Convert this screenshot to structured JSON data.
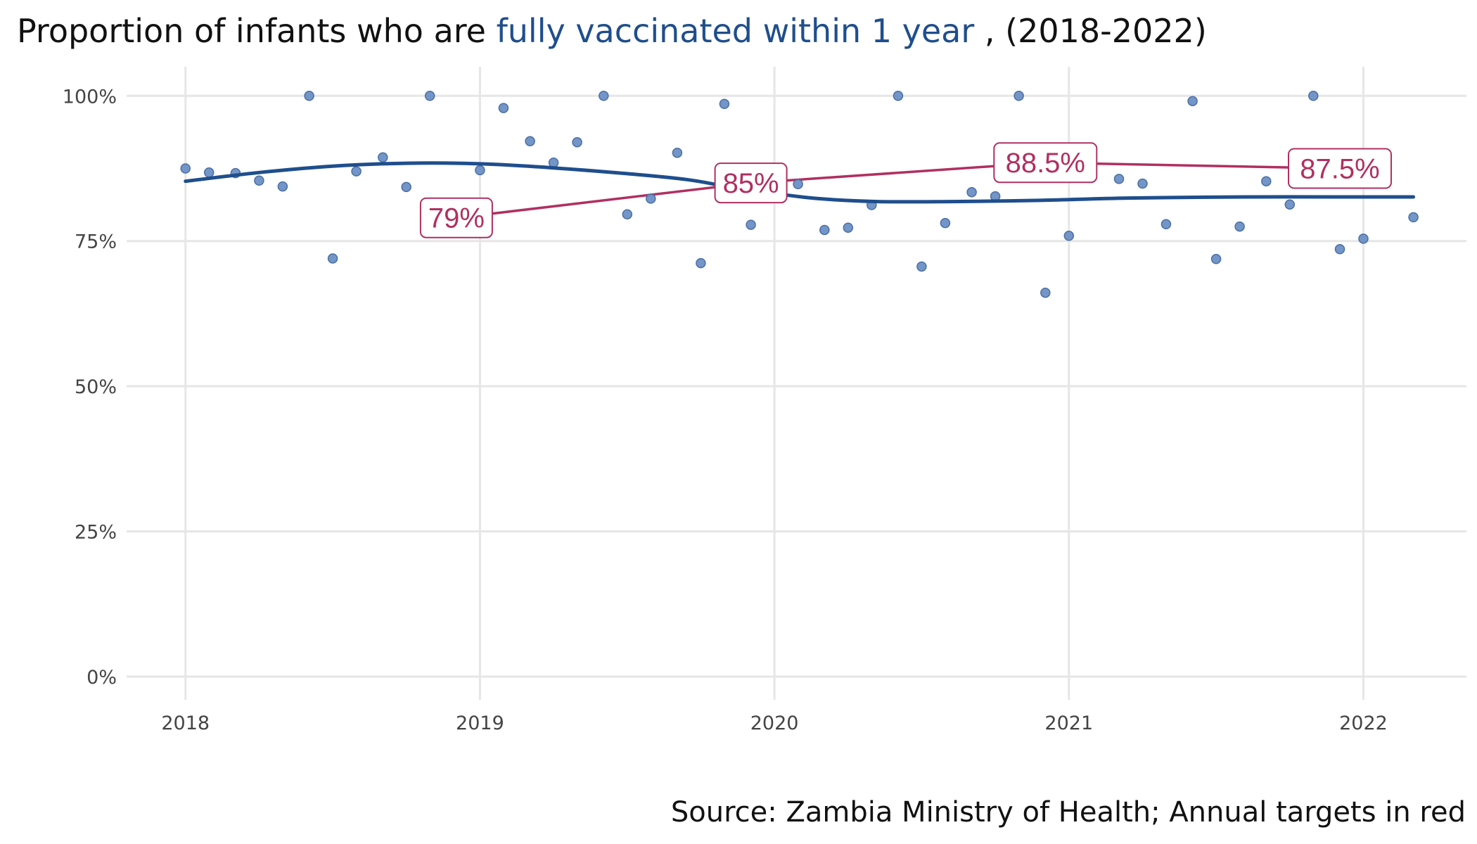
{
  "title": {
    "prefix": "Proportion of infants who are ",
    "highlight": "fully vaccinated within 1 year",
    "suffix": ", (2018-2022)"
  },
  "source": "Source: Zambia Ministry of Health; Annual targets in red",
  "colors": {
    "points": "#6b8fc4",
    "points_stroke": "#4a6fa5",
    "trend": "#1f4e8c",
    "target": "#b03060",
    "grid": "#e6e6e6",
    "title_highlight": "#1f4e8c"
  },
  "chart_data": {
    "type": "scatter",
    "x_axis": {
      "range": [
        2017.8,
        2022.35
      ],
      "ticks": [
        2018,
        2019,
        2020,
        2021,
        2022
      ],
      "tick_labels": [
        "2018",
        "2019",
        "2020",
        "2021",
        "2022"
      ]
    },
    "y_axis": {
      "range": [
        -4,
        105
      ],
      "ticks": [
        0,
        25,
        50,
        75,
        100
      ],
      "tick_labels": [
        "0%",
        "25%",
        "50%",
        "75%",
        "100%"
      ]
    },
    "grid": true,
    "observations": [
      {
        "x": 2018.0,
        "y": 87.5
      },
      {
        "x": 2018.08,
        "y": 86.8
      },
      {
        "x": 2018.17,
        "y": 86.7
      },
      {
        "x": 2018.25,
        "y": 85.4
      },
      {
        "x": 2018.33,
        "y": 84.4
      },
      {
        "x": 2018.42,
        "y": 100.0
      },
      {
        "x": 2018.5,
        "y": 72.0
      },
      {
        "x": 2018.58,
        "y": 87.0
      },
      {
        "x": 2018.67,
        "y": 89.4
      },
      {
        "x": 2018.75,
        "y": 84.3
      },
      {
        "x": 2018.83,
        "y": 100.0
      },
      {
        "x": 2019.0,
        "y": 87.2
      },
      {
        "x": 2019.08,
        "y": 97.9
      },
      {
        "x": 2019.17,
        "y": 92.2
      },
      {
        "x": 2019.25,
        "y": 88.5
      },
      {
        "x": 2019.33,
        "y": 92.0
      },
      {
        "x": 2019.42,
        "y": 100.0
      },
      {
        "x": 2019.5,
        "y": 79.6
      },
      {
        "x": 2019.58,
        "y": 82.3
      },
      {
        "x": 2019.67,
        "y": 90.2
      },
      {
        "x": 2019.75,
        "y": 71.2
      },
      {
        "x": 2019.83,
        "y": 98.6
      },
      {
        "x": 2019.92,
        "y": 77.8
      },
      {
        "x": 2020.08,
        "y": 84.8
      },
      {
        "x": 2020.17,
        "y": 76.9
      },
      {
        "x": 2020.25,
        "y": 77.3
      },
      {
        "x": 2020.33,
        "y": 81.2
      },
      {
        "x": 2020.42,
        "y": 100.0
      },
      {
        "x": 2020.5,
        "y": 70.6
      },
      {
        "x": 2020.58,
        "y": 78.1
      },
      {
        "x": 2020.67,
        "y": 83.4
      },
      {
        "x": 2020.75,
        "y": 82.7
      },
      {
        "x": 2020.83,
        "y": 100.0
      },
      {
        "x": 2020.92,
        "y": 66.1
      },
      {
        "x": 2021.0,
        "y": 75.9
      },
      {
        "x": 2021.17,
        "y": 85.7
      },
      {
        "x": 2021.25,
        "y": 84.9
      },
      {
        "x": 2021.33,
        "y": 77.9
      },
      {
        "x": 2021.42,
        "y": 99.1
      },
      {
        "x": 2021.5,
        "y": 71.9
      },
      {
        "x": 2021.58,
        "y": 77.5
      },
      {
        "x": 2021.67,
        "y": 85.3
      },
      {
        "x": 2021.75,
        "y": 81.3
      },
      {
        "x": 2021.83,
        "y": 100.0
      },
      {
        "x": 2021.92,
        "y": 73.6
      },
      {
        "x": 2022.0,
        "y": 75.4
      },
      {
        "x": 2022.17,
        "y": 79.1
      }
    ],
    "trend": [
      {
        "x": 2018.0,
        "y": 85.3
      },
      {
        "x": 2018.25,
        "y": 86.8
      },
      {
        "x": 2018.5,
        "y": 87.9
      },
      {
        "x": 2018.75,
        "y": 88.4
      },
      {
        "x": 2019.0,
        "y": 88.3
      },
      {
        "x": 2019.25,
        "y": 87.6
      },
      {
        "x": 2019.5,
        "y": 86.6
      },
      {
        "x": 2019.7,
        "y": 85.6
      },
      {
        "x": 2019.85,
        "y": 84.3
      },
      {
        "x": 2020.0,
        "y": 83.2
      },
      {
        "x": 2020.15,
        "y": 82.3
      },
      {
        "x": 2020.35,
        "y": 81.8
      },
      {
        "x": 2020.6,
        "y": 81.8
      },
      {
        "x": 2020.9,
        "y": 82.0
      },
      {
        "x": 2021.2,
        "y": 82.4
      },
      {
        "x": 2021.6,
        "y": 82.6
      },
      {
        "x": 2022.0,
        "y": 82.6
      },
      {
        "x": 2022.17,
        "y": 82.6
      }
    ],
    "targets": [
      {
        "x": 2018.92,
        "y": 79.0,
        "label": "79%"
      },
      {
        "x": 2019.92,
        "y": 85.0,
        "label": "85%"
      },
      {
        "x": 2020.92,
        "y": 88.5,
        "label": "88.5%"
      },
      {
        "x": 2021.92,
        "y": 87.5,
        "label": "87.5%"
      }
    ]
  }
}
